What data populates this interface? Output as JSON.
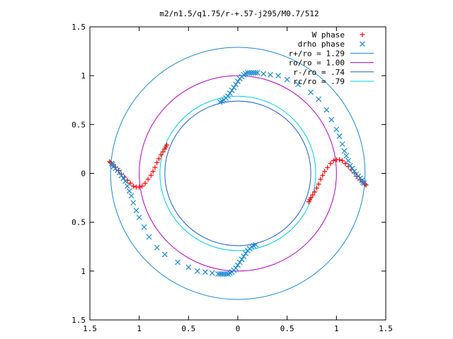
{
  "chart_data": {
    "type": "scatter",
    "title": "m2/n1.5/q1.75/r-+.57-j295/M0.7/512",
    "xlabel": "",
    "ylabel": "",
    "xlim": [
      -1.5,
      1.5
    ],
    "ylim": [
      -1.5,
      1.5
    ],
    "x_ticks": [
      {
        "value": -1.5,
        "label": "1.5"
      },
      {
        "value": -1.0,
        "label": "1"
      },
      {
        "value": -0.5,
        "label": "0.5"
      },
      {
        "value": 0,
        "label": "0"
      },
      {
        "value": 0.5,
        "label": "0.5"
      },
      {
        "value": 1.0,
        "label": "1"
      },
      {
        "value": 1.5,
        "label": "1.5"
      }
    ],
    "y_ticks": [
      {
        "value": 1.5,
        "label": "1.5"
      },
      {
        "value": 1.0,
        "label": "1"
      },
      {
        "value": 0.5,
        "label": "0.5"
      },
      {
        "value": 0,
        "label": "0"
      },
      {
        "value": -0.5,
        "label": "0.5"
      },
      {
        "value": -1.0,
        "label": "1"
      },
      {
        "value": -1.5,
        "label": "1.5"
      }
    ],
    "grid": false,
    "legend_placement": "top-right",
    "circles": [
      {
        "name": "r+/ro = 1.29",
        "radius": 1.29,
        "color": "#1a8ad4"
      },
      {
        "name": "ro/ro = 1.00",
        "radius": 1.0,
        "color": "#b000c0"
      },
      {
        "name": "r-/ro = .74",
        "radius": 0.74,
        "color": "#1a5fd0"
      },
      {
        "name": "rc/ro = .79",
        "radius": 0.79,
        "color": "#00d0d8"
      }
    ],
    "series": [
      {
        "name": "W phase",
        "marker": "plus",
        "color": "#ff0000",
        "points": [
          [
            -0.72,
            0.29
          ],
          [
            -0.73,
            0.27
          ],
          [
            -0.74,
            0.25
          ],
          [
            -0.76,
            0.22
          ],
          [
            -0.78,
            0.19
          ],
          [
            -0.8,
            0.15
          ],
          [
            -0.82,
            0.11
          ],
          [
            -0.84,
            0.06
          ],
          [
            -0.86,
            0.02
          ],
          [
            -0.88,
            -0.02
          ],
          [
            -0.91,
            -0.06
          ],
          [
            -0.94,
            -0.1
          ],
          [
            -0.97,
            -0.13
          ],
          [
            -1.0,
            -0.14
          ],
          [
            -1.03,
            -0.14
          ],
          [
            -1.06,
            -0.13
          ],
          [
            -1.09,
            -0.1
          ],
          [
            -1.12,
            -0.07
          ],
          [
            -1.15,
            -0.04
          ],
          [
            -1.18,
            -0.01
          ],
          [
            -1.21,
            0.03
          ],
          [
            -1.24,
            0.06
          ],
          [
            -1.27,
            0.09
          ],
          [
            -1.29,
            0.11
          ],
          [
            -1.3,
            0.12
          ],
          [
            0.72,
            -0.29
          ],
          [
            0.73,
            -0.27
          ],
          [
            0.74,
            -0.25
          ],
          [
            0.76,
            -0.22
          ],
          [
            0.78,
            -0.19
          ],
          [
            0.8,
            -0.15
          ],
          [
            0.82,
            -0.11
          ],
          [
            0.84,
            -0.06
          ],
          [
            0.86,
            -0.02
          ],
          [
            0.88,
            0.02
          ],
          [
            0.91,
            0.06
          ],
          [
            0.94,
            0.1
          ],
          [
            0.97,
            0.13
          ],
          [
            1.0,
            0.14
          ],
          [
            1.03,
            0.14
          ],
          [
            1.06,
            0.13
          ],
          [
            1.09,
            0.1
          ],
          [
            1.12,
            0.07
          ],
          [
            1.15,
            0.04
          ],
          [
            1.18,
            0.01
          ],
          [
            1.21,
            -0.03
          ],
          [
            1.24,
            -0.06
          ],
          [
            1.27,
            -0.09
          ],
          [
            1.29,
            -0.11
          ],
          [
            1.3,
            -0.12
          ]
        ]
      },
      {
        "name": "drho phase",
        "marker": "cross",
        "color": "#1a8ad4",
        "points": [
          [
            0.2,
            1.03
          ],
          [
            0.18,
            1.03
          ],
          [
            0.16,
            1.03
          ],
          [
            0.14,
            1.03
          ],
          [
            0.12,
            1.03
          ],
          [
            0.1,
            1.03
          ],
          [
            0.08,
            1.02
          ],
          [
            0.06,
            1.01
          ],
          [
            0.04,
            0.99
          ],
          [
            0.02,
            0.97
          ],
          [
            0.0,
            0.94
          ],
          [
            -0.02,
            0.91
          ],
          [
            -0.04,
            0.88
          ],
          [
            -0.06,
            0.85
          ],
          [
            -0.08,
            0.82
          ],
          [
            -0.1,
            0.79
          ],
          [
            -0.12,
            0.77
          ],
          [
            -0.14,
            0.75
          ],
          [
            -0.16,
            0.74
          ],
          [
            -0.18,
            0.73
          ],
          [
            0.26,
            1.02
          ],
          [
            0.33,
            1.01
          ],
          [
            0.41,
            1.0
          ],
          [
            0.5,
            0.96
          ],
          [
            0.61,
            0.91
          ],
          [
            0.74,
            0.83
          ],
          [
            0.82,
            0.76
          ],
          [
            0.9,
            0.65
          ],
          [
            0.95,
            0.55
          ],
          [
            1.0,
            0.45
          ],
          [
            1.03,
            0.38
          ],
          [
            1.06,
            0.3
          ],
          [
            1.08,
            0.23
          ],
          [
            1.1,
            0.18
          ],
          [
            1.12,
            0.13
          ],
          [
            1.14,
            0.08
          ],
          [
            1.16,
            0.05
          ],
          [
            1.18,
            0.02
          ],
          [
            1.2,
            -0.01
          ],
          [
            1.22,
            -0.03
          ],
          [
            1.24,
            -0.05
          ],
          [
            1.26,
            -0.07
          ],
          [
            1.27,
            -0.09
          ],
          [
            1.28,
            -0.1
          ],
          [
            -0.2,
            -1.03
          ],
          [
            -0.18,
            -1.03
          ],
          [
            -0.16,
            -1.03
          ],
          [
            -0.14,
            -1.03
          ],
          [
            -0.12,
            -1.03
          ],
          [
            -0.1,
            -1.03
          ],
          [
            -0.08,
            -1.02
          ],
          [
            -0.06,
            -1.01
          ],
          [
            -0.04,
            -0.99
          ],
          [
            -0.02,
            -0.97
          ],
          [
            0.0,
            -0.94
          ],
          [
            0.02,
            -0.91
          ],
          [
            0.04,
            -0.88
          ],
          [
            0.06,
            -0.85
          ],
          [
            0.08,
            -0.82
          ],
          [
            0.1,
            -0.79
          ],
          [
            0.12,
            -0.77
          ],
          [
            0.14,
            -0.75
          ],
          [
            0.16,
            -0.74
          ],
          [
            0.18,
            -0.73
          ],
          [
            -0.26,
            -1.02
          ],
          [
            -0.33,
            -1.01
          ],
          [
            -0.41,
            -1.0
          ],
          [
            -0.5,
            -0.96
          ],
          [
            -0.61,
            -0.91
          ],
          [
            -0.74,
            -0.83
          ],
          [
            -0.82,
            -0.76
          ],
          [
            -0.9,
            -0.65
          ],
          [
            -0.95,
            -0.55
          ],
          [
            -1.0,
            -0.45
          ],
          [
            -1.03,
            -0.38
          ],
          [
            -1.06,
            -0.3
          ],
          [
            -1.08,
            -0.23
          ],
          [
            -1.1,
            -0.18
          ],
          [
            -1.12,
            -0.13
          ],
          [
            -1.14,
            -0.08
          ],
          [
            -1.16,
            -0.05
          ],
          [
            -1.18,
            -0.02
          ],
          [
            -1.2,
            0.01
          ],
          [
            -1.22,
            0.03
          ],
          [
            -1.24,
            0.05
          ],
          [
            -1.26,
            0.07
          ],
          [
            -1.27,
            0.09
          ],
          [
            -1.28,
            0.1
          ]
        ]
      }
    ]
  }
}
